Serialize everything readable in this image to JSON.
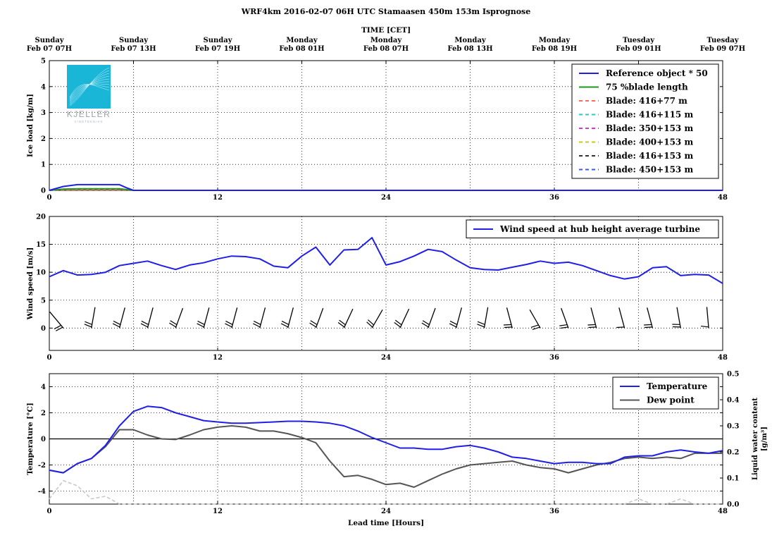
{
  "title": "WRF4km 2016-02-07 06H UTC Stamaasen 450m 153m Isprognose",
  "logo": {
    "text": "KJELLER",
    "subtext": "VINDTEKNIKK",
    "color": "#1ab6d8"
  },
  "top_axis": {
    "label": "TIME [CET]",
    "ticks": [
      {
        "x": 0,
        "day": "Sunday",
        "date": "Feb 07 07H"
      },
      {
        "x": 6,
        "day": "Sunday",
        "date": "Feb 07 13H"
      },
      {
        "x": 12,
        "day": "Sunday",
        "date": "Feb 07 19H"
      },
      {
        "x": 18,
        "day": "Monday",
        "date": "Feb 08 01H"
      },
      {
        "x": 24,
        "day": "Monday",
        "date": "Feb 08 07H"
      },
      {
        "x": 30,
        "day": "Monday",
        "date": "Feb 08 13H"
      },
      {
        "x": 36,
        "day": "Monday",
        "date": "Feb 08 19H"
      },
      {
        "x": 42,
        "day": "Tuesday",
        "date": "Feb 09 01H"
      },
      {
        "x": 48,
        "day": "Tuesday",
        "date": "Feb 09 07H"
      }
    ]
  },
  "chart_data": [
    {
      "type": "line",
      "ylabel": "Ice load [kg/m]",
      "xlim": [
        0,
        48
      ],
      "ylim": [
        0,
        5
      ],
      "xticks": [
        "0",
        "12",
        "24",
        "36",
        "48"
      ],
      "yticks": [
        "0",
        "1",
        "2",
        "3",
        "4",
        "5"
      ],
      "grid": true,
      "legend_position": "top-right",
      "series": [
        {
          "name": "Reference object * 50",
          "color": "#1f1fe8",
          "style": "solid",
          "x": [
            0,
            1,
            2,
            3,
            4,
            5,
            5.5,
            6,
            48
          ],
          "y": [
            0,
            0.15,
            0.22,
            0.22,
            0.22,
            0.22,
            0.1,
            0,
            0
          ]
        },
        {
          "name": "75 %blade length",
          "color": "#1f9a1f",
          "style": "solid",
          "x": [
            0,
            1,
            2,
            5,
            6,
            48
          ],
          "y": [
            0,
            0.05,
            0.06,
            0.06,
            0,
            0
          ]
        },
        {
          "name": "Blade: 416+77 m",
          "color": "#ff6a5a",
          "style": "dashed",
          "x": [
            0,
            48
          ],
          "y": [
            0,
            0
          ]
        },
        {
          "name": "Blade: 416+115 m",
          "color": "#2ec8c8",
          "style": "dashed",
          "x": [
            0,
            48
          ],
          "y": [
            0,
            0
          ]
        },
        {
          "name": "Blade: 350+153 m",
          "color": "#d03ad0",
          "style": "dashed",
          "x": [
            0,
            48
          ],
          "y": [
            0,
            0
          ]
        },
        {
          "name": "Blade: 400+153 m",
          "color": "#c8c81e",
          "style": "dashed",
          "x": [
            0,
            48
          ],
          "y": [
            0,
            0
          ]
        },
        {
          "name": "Blade: 416+153 m",
          "color": "#333333",
          "style": "dashed",
          "x": [
            0,
            1,
            2,
            5,
            6,
            48
          ],
          "y": [
            0,
            0.04,
            0.05,
            0.05,
            0,
            0
          ]
        },
        {
          "name": "Blade: 450+153 m",
          "color": "#3a5ae8",
          "style": "dashed",
          "x": [
            0,
            48
          ],
          "y": [
            0,
            0
          ]
        }
      ]
    },
    {
      "type": "line",
      "ylabel": "Wind speed [m/s]",
      "xlim": [
        0,
        48
      ],
      "ylim": [
        -4,
        20
      ],
      "xticks": [
        "0",
        "12",
        "24",
        "36",
        "48"
      ],
      "yticks": [
        "0",
        "5",
        "10",
        "15",
        "20"
      ],
      "grid": true,
      "legend_position": "top-right",
      "series": [
        {
          "name": "Wind speed at hub height average turbine",
          "color": "#1f1fe8",
          "style": "solid",
          "x": [
            0,
            1,
            2,
            3,
            4,
            5,
            6,
            7,
            8,
            9,
            10,
            11,
            12,
            13,
            14,
            15,
            16,
            17,
            18,
            19,
            20,
            21,
            22,
            23,
            24,
            25,
            26,
            27,
            28,
            29,
            30,
            31,
            32,
            33,
            34,
            35,
            36,
            37,
            38,
            39,
            40,
            41,
            42,
            43,
            44,
            45,
            46,
            47,
            48
          ],
          "y": [
            9.2,
            10.3,
            9.5,
            9.6,
            10.0,
            11.2,
            11.6,
            12.0,
            11.2,
            10.5,
            11.3,
            11.7,
            12.4,
            12.9,
            12.8,
            12.4,
            11.1,
            10.8,
            12.9,
            14.5,
            11.3,
            14.0,
            14.1,
            16.2,
            11.3,
            11.9,
            12.9,
            14.1,
            13.7,
            12.2,
            10.8,
            10.5,
            10.4,
            10.9,
            11.4,
            12.0,
            11.6,
            11.8,
            11.2,
            10.3,
            9.4,
            8.8,
            9.2,
            10.8,
            11.0,
            9.4,
            9.6,
            9.5,
            8.0
          ]
        }
      ],
      "wind_barbs": {
        "y": 0,
        "x": [
          1,
          3,
          5,
          7,
          9,
          11,
          13,
          15,
          17,
          19,
          21,
          23,
          25,
          27,
          29,
          31,
          33,
          35,
          37,
          39,
          41,
          43,
          45,
          47
        ],
        "direction_deg": [
          320,
          10,
          15,
          15,
          20,
          15,
          15,
          15,
          15,
          20,
          25,
          30,
          25,
          20,
          15,
          10,
          345,
          330,
          340,
          345,
          345,
          345,
          350,
          355
        ],
        "speed_ms": [
          10,
          10,
          10,
          12,
          11,
          12,
          13,
          12,
          11,
          14,
          14,
          16,
          12,
          14,
          12,
          10,
          11,
          12,
          12,
          10,
          9,
          11,
          10,
          9
        ]
      }
    },
    {
      "type": "line",
      "ylabel": "Temperature [°C]",
      "y2label": "Liquid water content [g/m³]",
      "xlabel": "Lead time [Hours]",
      "xlim": [
        0,
        48
      ],
      "ylim": [
        -5,
        5
      ],
      "y2lim": [
        0,
        0.5
      ],
      "xticks": [
        "0",
        "12",
        "24",
        "36",
        "48"
      ],
      "yticks": [
        "-4",
        "-2",
        "0",
        "2",
        "4"
      ],
      "y2ticks": [
        "0.0",
        "0.1",
        "0.2",
        "0.3",
        "0.4",
        "0.5"
      ],
      "grid": true,
      "legend_position": "top-right",
      "series": [
        {
          "name": "Temperature",
          "color": "#1f1fe8",
          "style": "solid",
          "x": [
            0,
            1,
            2,
            3,
            4,
            5,
            6,
            7,
            8,
            9,
            10,
            11,
            12,
            13,
            14,
            15,
            16,
            17,
            18,
            19,
            20,
            21,
            22,
            23,
            24,
            25,
            26,
            27,
            28,
            29,
            30,
            31,
            32,
            33,
            34,
            35,
            36,
            37,
            38,
            39,
            40,
            41,
            42,
            43,
            44,
            45,
            46,
            47,
            48
          ],
          "y": [
            -2.4,
            -2.6,
            -1.9,
            -1.5,
            -0.5,
            1.0,
            2.1,
            2.5,
            2.4,
            2.0,
            1.7,
            1.4,
            1.3,
            1.2,
            1.2,
            1.25,
            1.3,
            1.35,
            1.35,
            1.3,
            1.2,
            1.0,
            0.6,
            0.1,
            -0.3,
            -0.7,
            -0.7,
            -0.8,
            -0.8,
            -0.6,
            -0.5,
            -0.7,
            -1.0,
            -1.4,
            -1.5,
            -1.7,
            -1.9,
            -1.8,
            -1.8,
            -1.9,
            -1.9,
            -1.4,
            -1.3,
            -1.3,
            -1.0,
            -0.85,
            -1.0,
            -1.1,
            -0.9
          ]
        },
        {
          "name": "Dew point",
          "color": "#555555",
          "style": "solid",
          "x": [
            0,
            1,
            2,
            3,
            4,
            5,
            6,
            7,
            8,
            9,
            10,
            11,
            12,
            13,
            14,
            15,
            16,
            17,
            18,
            19,
            20,
            21,
            22,
            23,
            24,
            25,
            26,
            27,
            28,
            29,
            30,
            31,
            32,
            33,
            34,
            35,
            36,
            37,
            38,
            39,
            40,
            41,
            42,
            43,
            44,
            45,
            46,
            47,
            48
          ],
          "y": [
            -2.4,
            -2.6,
            -1.9,
            -1.5,
            -0.6,
            0.7,
            0.7,
            0.3,
            0.0,
            -0.05,
            0.3,
            0.7,
            0.9,
            1.0,
            0.9,
            0.6,
            0.6,
            0.4,
            0.1,
            -0.3,
            -1.7,
            -2.9,
            -2.8,
            -3.1,
            -3.5,
            -3.4,
            -3.7,
            -3.2,
            -2.7,
            -2.3,
            -2.0,
            -1.9,
            -1.8,
            -1.7,
            -2.0,
            -2.2,
            -2.3,
            -2.6,
            -2.3,
            -2.0,
            -1.8,
            -1.5,
            -1.4,
            -1.5,
            -1.4,
            -1.5,
            -1.1,
            -1.1,
            -1.1
          ]
        },
        {
          "name": "Liquid water content",
          "color": "#c8c8c8",
          "style": "dashed",
          "axis": "right",
          "x": [
            0,
            1,
            2,
            3,
            4,
            5,
            6,
            7,
            8,
            9,
            10,
            11,
            12,
            13,
            14,
            15,
            16,
            17,
            18,
            19,
            20,
            21,
            22,
            23,
            24,
            25,
            26,
            27,
            28,
            29,
            30,
            31,
            32,
            33,
            34,
            35,
            36,
            37,
            38,
            39,
            40,
            41,
            42,
            43,
            44,
            45,
            46,
            47,
            48
          ],
          "y": [
            0.02,
            0.09,
            0.07,
            0.02,
            0.03,
            0.0,
            0.0,
            0.0,
            0.0,
            0.0,
            0.0,
            0.0,
            0.0,
            0.0,
            0.0,
            0.0,
            0.0,
            0.0,
            0.0,
            0.0,
            0.0,
            0.0,
            0.0,
            0.0,
            0.0,
            0.0,
            0.0,
            0.0,
            0.0,
            0.0,
            0.0,
            0.0,
            0.0,
            0.0,
            0.0,
            0.0,
            0.0,
            0.0,
            0.0,
            0.0,
            0.0,
            0.0,
            0.02,
            0.0,
            0.0,
            0.02,
            0.0,
            0.0,
            0.0
          ]
        }
      ],
      "legend_entries": [
        "Temperature",
        "Dew point"
      ]
    }
  ]
}
